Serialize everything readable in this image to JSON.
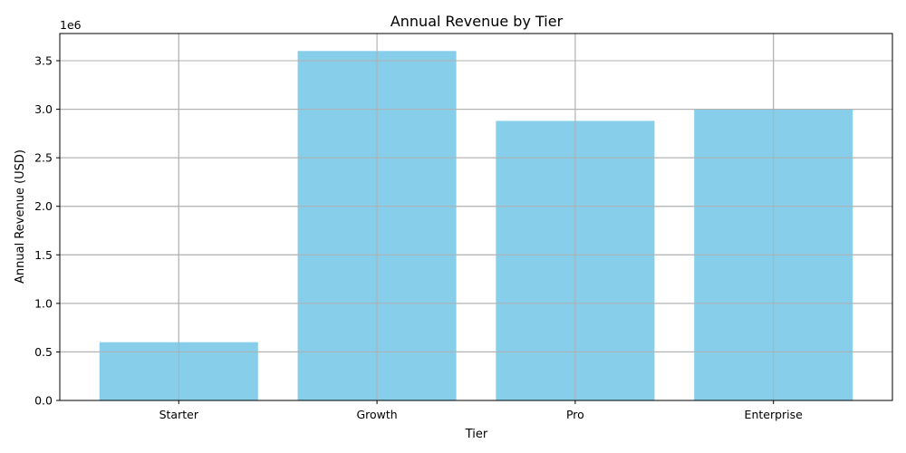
{
  "chart_data": {
    "type": "bar",
    "title": "Annual Revenue by Tier",
    "xlabel": "Tier",
    "ylabel": "Annual Revenue (USD)",
    "categories": [
      "Starter",
      "Growth",
      "Pro",
      "Enterprise"
    ],
    "values": [
      600000,
      3600000,
      2880000,
      3000000
    ],
    "ylim": [
      0,
      3780000
    ],
    "y_ticks": [
      0,
      500000,
      1000000,
      1500000,
      2000000,
      2500000,
      3000000,
      3500000
    ],
    "y_tick_labels": [
      "0.0",
      "0.5",
      "1.0",
      "1.5",
      "2.0",
      "2.5",
      "3.0",
      "3.5"
    ],
    "y_offset_label": "1e6",
    "grid": true,
    "bar_color": "#87ceeb"
  }
}
